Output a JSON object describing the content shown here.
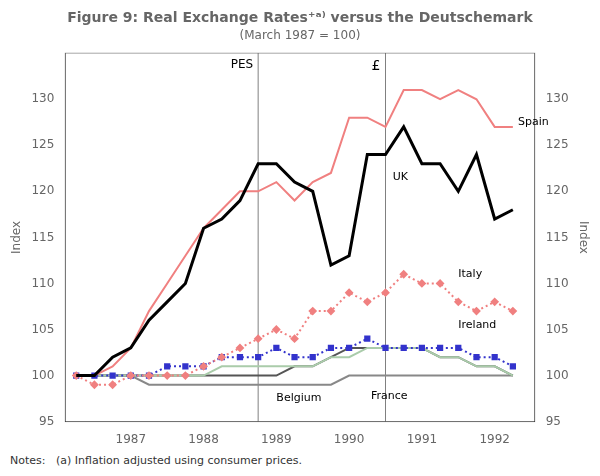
{
  "chart_data": {
    "type": "line",
    "title": "Figure 9: Real Exchange Rates⁺ᵃ⁾ versus the Deutschemark",
    "subtitle": "(March 1987 = 100)",
    "note": "Notes:   (a) Inflation adjusted using consumer prices.",
    "ylabel": "Index",
    "y2label": "Index",
    "grid": false,
    "x": [
      1986.25,
      1986.5,
      1986.75,
      1987.0,
      1987.25,
      1987.5,
      1987.75,
      1988.0,
      1988.25,
      1988.5,
      1988.75,
      1989.0,
      1989.25,
      1989.5,
      1989.75,
      1990.0,
      1990.25,
      1990.5,
      1990.75,
      1991.0,
      1991.25,
      1991.5,
      1991.75,
      1992.0,
      1992.25
    ],
    "xlim": [
      1986.1,
      1992.55
    ],
    "xticks": [
      1987,
      1988,
      1989,
      1990,
      1991,
      1992
    ],
    "ylim": [
      95,
      135
    ],
    "yticks": [
      95,
      100,
      105,
      110,
      115,
      120,
      125,
      130
    ],
    "y2lim": [
      95,
      135
    ],
    "y2ticks": [
      95,
      100,
      105,
      110,
      115,
      120,
      125,
      130
    ],
    "series": [
      {
        "name": "Belgium",
        "color": "#888888",
        "line_style": "solid",
        "values": [
          100,
          100,
          100,
          100,
          99,
          99,
          99,
          99,
          99,
          99,
          99,
          99,
          99,
          99,
          99,
          100,
          100,
          100,
          100,
          100,
          100,
          100,
          100,
          100,
          100
        ]
      },
      {
        "name": "France",
        "color": "#555555",
        "line_style": "solid",
        "values": [
          100,
          100,
          100,
          100,
          100,
          100,
          100,
          100,
          100,
          100,
          100,
          100,
          101,
          101,
          102,
          103,
          103,
          103,
          103,
          103,
          102,
          102,
          101,
          101,
          100
        ]
      },
      {
        "color": "#aaccaa",
        "line_style": "solid",
        "values": [
          100,
          100,
          100,
          100,
          100,
          100,
          100,
          100,
          101,
          101,
          101,
          101,
          101,
          101,
          102,
          102,
          103,
          103,
          103,
          103,
          102,
          102,
          101,
          101,
          100
        ]
      },
      {
        "name": "Ireland",
        "color": "#3333cc",
        "line_style": "dotted",
        "marker": "square",
        "values": [
          100,
          100,
          100,
          100,
          100,
          101,
          101,
          101,
          102,
          102,
          102,
          103,
          102,
          102,
          103,
          103,
          104,
          103,
          103,
          103,
          103,
          103,
          102,
          102,
          101
        ]
      },
      {
        "name": "Italy",
        "color": "#f08080",
        "line_style": "dotted",
        "marker": "diamond",
        "values": [
          100,
          99,
          99,
          100,
          100,
          100,
          100,
          101,
          102,
          103,
          104,
          105,
          104,
          107,
          107,
          109,
          108,
          109,
          111,
          110,
          110,
          108,
          107,
          108,
          107
        ]
      },
      {
        "name": "Spain",
        "color": "#f08080",
        "line_style": "solid",
        "values": [
          100,
          100,
          101,
          103,
          107,
          110,
          113,
          116,
          118,
          120,
          120,
          121,
          119,
          121,
          122,
          128,
          128,
          127,
          131,
          131,
          130,
          131,
          130,
          127,
          127
        ]
      },
      {
        "name": "UK",
        "color": "#000000",
        "line_style": "solid",
        "values": [
          100,
          100,
          102,
          103,
          106,
          108,
          110,
          116,
          117,
          119,
          123,
          123,
          121,
          120,
          112,
          113,
          124,
          124,
          127,
          123,
          123,
          120,
          124,
          117,
          118
        ]
      }
    ],
    "vlines": [
      {
        "x": 1988.75,
        "label": "PES"
      },
      {
        "x": 1990.5,
        "label": "£"
      }
    ],
    "annotations": [
      {
        "text": "Spain",
        "x": 1992.32,
        "y": 127.5
      },
      {
        "text": "UK",
        "x": 1990.6,
        "y": 121.5
      },
      {
        "text": "Italy",
        "x": 1991.5,
        "y": 111.0
      },
      {
        "text": "Ireland",
        "x": 1991.5,
        "y": 105.5
      },
      {
        "text": "France",
        "x": 1990.3,
        "y": 97.8
      },
      {
        "text": "Belgium",
        "x": 1989.0,
        "y": 97.5
      }
    ]
  }
}
